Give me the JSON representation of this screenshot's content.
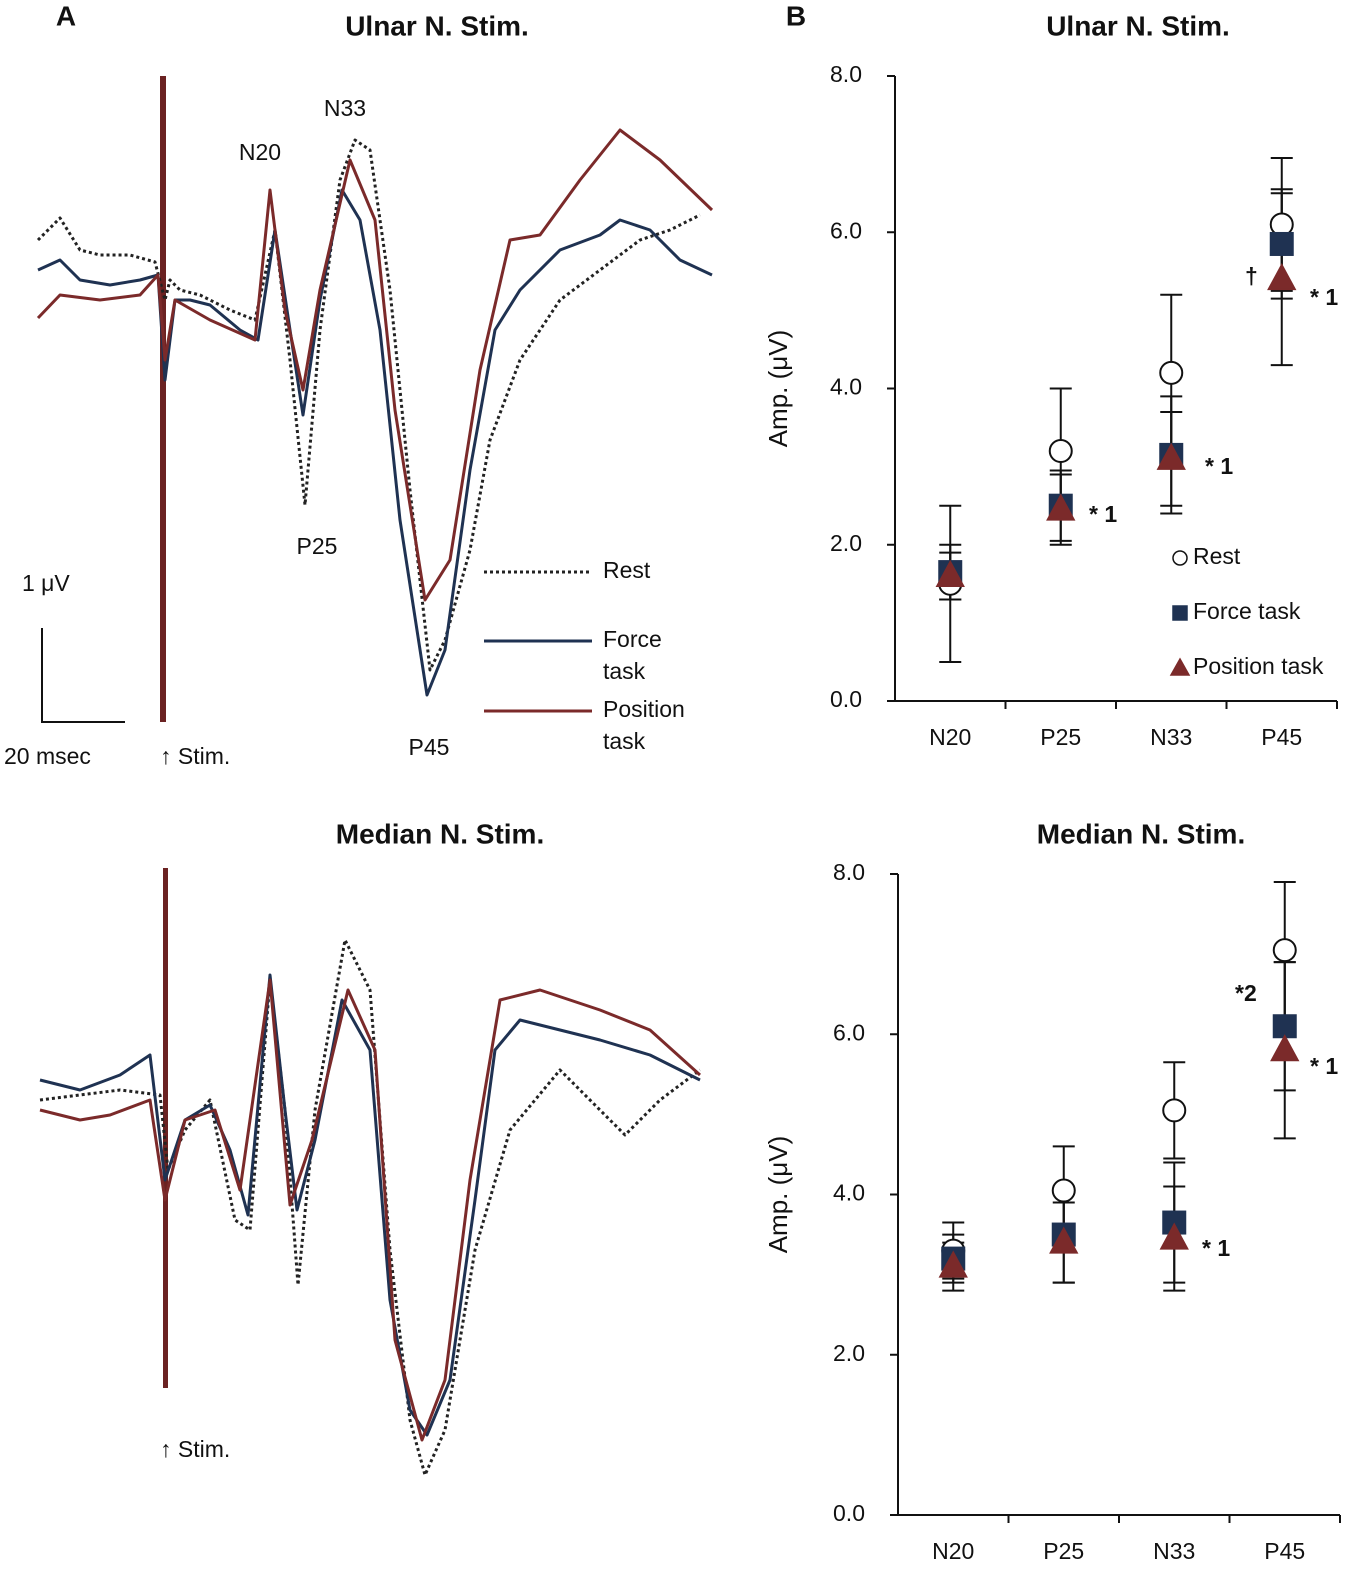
{
  "panel_a": {
    "label": "A",
    "top_title": "Ulnar N. Stim.",
    "peak_labels": [
      "N20",
      "N33",
      "P25",
      "P45"
    ],
    "legend": [
      "Rest",
      "Force",
      "task",
      "Position",
      "task"
    ],
    "scale_amp": "1 μV",
    "scale_time": "20 msec",
    "stim": "↑ Stim.",
    "bottom_title": "Median N. Stim.",
    "bottom_stim": "↑ Stim."
  },
  "panel_b_label": "B",
  "chart_data": [
    {
      "type": "scatter",
      "title": "Ulnar N. Stim.",
      "y_label": "Amp. (μV)",
      "categories": [
        "N20",
        "P25",
        "N33",
        "P45"
      ],
      "ylim": [
        0,
        8
      ],
      "yticks": [
        {
          "value": 0,
          "label": "0.0"
        },
        {
          "value": 2,
          "label": "2.0"
        },
        {
          "value": 4,
          "label": "4.0"
        },
        {
          "value": 6,
          "label": "6.0"
        },
        {
          "value": 8,
          "label": "8.0"
        }
      ],
      "legend": "lower right",
      "series": [
        {
          "name": "Rest",
          "color": "#ffffff",
          "marker": "circle",
          "values": [
            1.5,
            3.2,
            4.2,
            6.1
          ],
          "errors": [
            1.0,
            0.8,
            1.0,
            0.85
          ]
        },
        {
          "name": "Force task",
          "color": "#1f3252",
          "marker": "square",
          "values": [
            1.65,
            2.5,
            3.15,
            5.85
          ],
          "errors": [
            0.35,
            0.45,
            0.75,
            0.7
          ]
        },
        {
          "name": "Position task",
          "color": "#7b2a2a",
          "marker": "triangle",
          "values": [
            1.6,
            2.45,
            3.1,
            5.4
          ],
          "errors": [
            0.3,
            0.45,
            0.6,
            1.1
          ]
        }
      ],
      "annotations": [
        "* 1",
        "* 1",
        "†",
        "* 1"
      ]
    },
    {
      "type": "scatter",
      "title": "Median N. Stim.",
      "y_label": "Amp. (μV)",
      "categories": [
        "N20",
        "P25",
        "N33",
        "P45"
      ],
      "ylim": [
        0,
        8
      ],
      "yticks": [
        {
          "value": 0,
          "label": "0.0"
        },
        {
          "value": 2,
          "label": "2.0"
        },
        {
          "value": 4,
          "label": "4.0"
        },
        {
          "value": 6,
          "label": "6.0"
        },
        {
          "value": 8,
          "label": "8.0"
        }
      ],
      "series": [
        {
          "name": "Rest",
          "color": "#ffffff",
          "marker": "circle",
          "values": [
            3.3,
            4.05,
            5.05,
            7.05
          ],
          "errors": [
            0.35,
            0.55,
            0.6,
            0.85
          ]
        },
        {
          "name": "Force task",
          "color": "#1f3252",
          "marker": "square",
          "values": [
            3.2,
            3.5,
            3.65,
            6.1
          ],
          "errors": [
            0.3,
            0.6,
            0.75,
            0.8
          ]
        },
        {
          "name": "Position task",
          "color": "#7b2a2a",
          "marker": "triangle",
          "values": [
            3.1,
            3.4,
            3.45,
            5.8
          ],
          "errors": [
            0.3,
            0.5,
            0.65,
            1.1
          ]
        }
      ],
      "annotations": [
        "* 1",
        "*2",
        "* 1"
      ]
    }
  ]
}
